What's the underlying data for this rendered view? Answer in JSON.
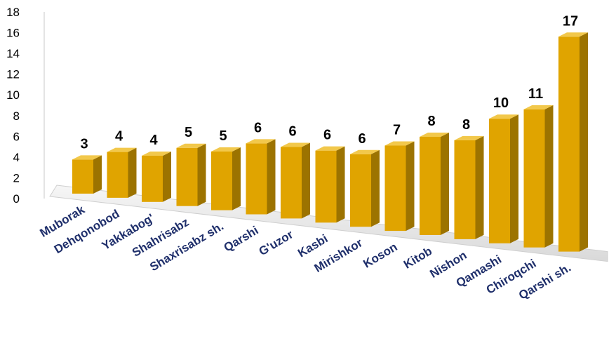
{
  "chart_data": {
    "type": "bar",
    "title": "",
    "xlabel": "",
    "ylabel": "",
    "ylim": [
      0,
      18
    ],
    "y_ticks": [
      "0",
      "2",
      "4",
      "6",
      "8",
      "10",
      "12",
      "14",
      "16",
      "18"
    ],
    "categories": [
      "Muborak",
      "Dehqonobod",
      "Yakkabog'",
      "Shahrisabz",
      "Shaxrisabz sh.",
      "Qarshi",
      "G'uzor",
      "Kasbi",
      "Mirishkor",
      "Koson",
      "Kitob",
      "Nishon",
      "Qamashi",
      "Chiroqchi",
      "Qarshi sh."
    ],
    "values": [
      3,
      4,
      4,
      5,
      5,
      6,
      6,
      6,
      6,
      7,
      8,
      8,
      10,
      11,
      17
    ],
    "data_labels": [
      "3",
      "4",
      "4",
      "5",
      "5",
      "6",
      "6",
      "6",
      "6",
      "7",
      "8",
      "8",
      "10",
      "11",
      "17"
    ],
    "grid": false,
    "legend": "none",
    "colors": {
      "bar_front": "#e0a400",
      "bar_side": "#9c7300",
      "bar_top": "#f2c84b",
      "floor": "#e4e4e4",
      "category_text": "#1f2f6b"
    }
  }
}
